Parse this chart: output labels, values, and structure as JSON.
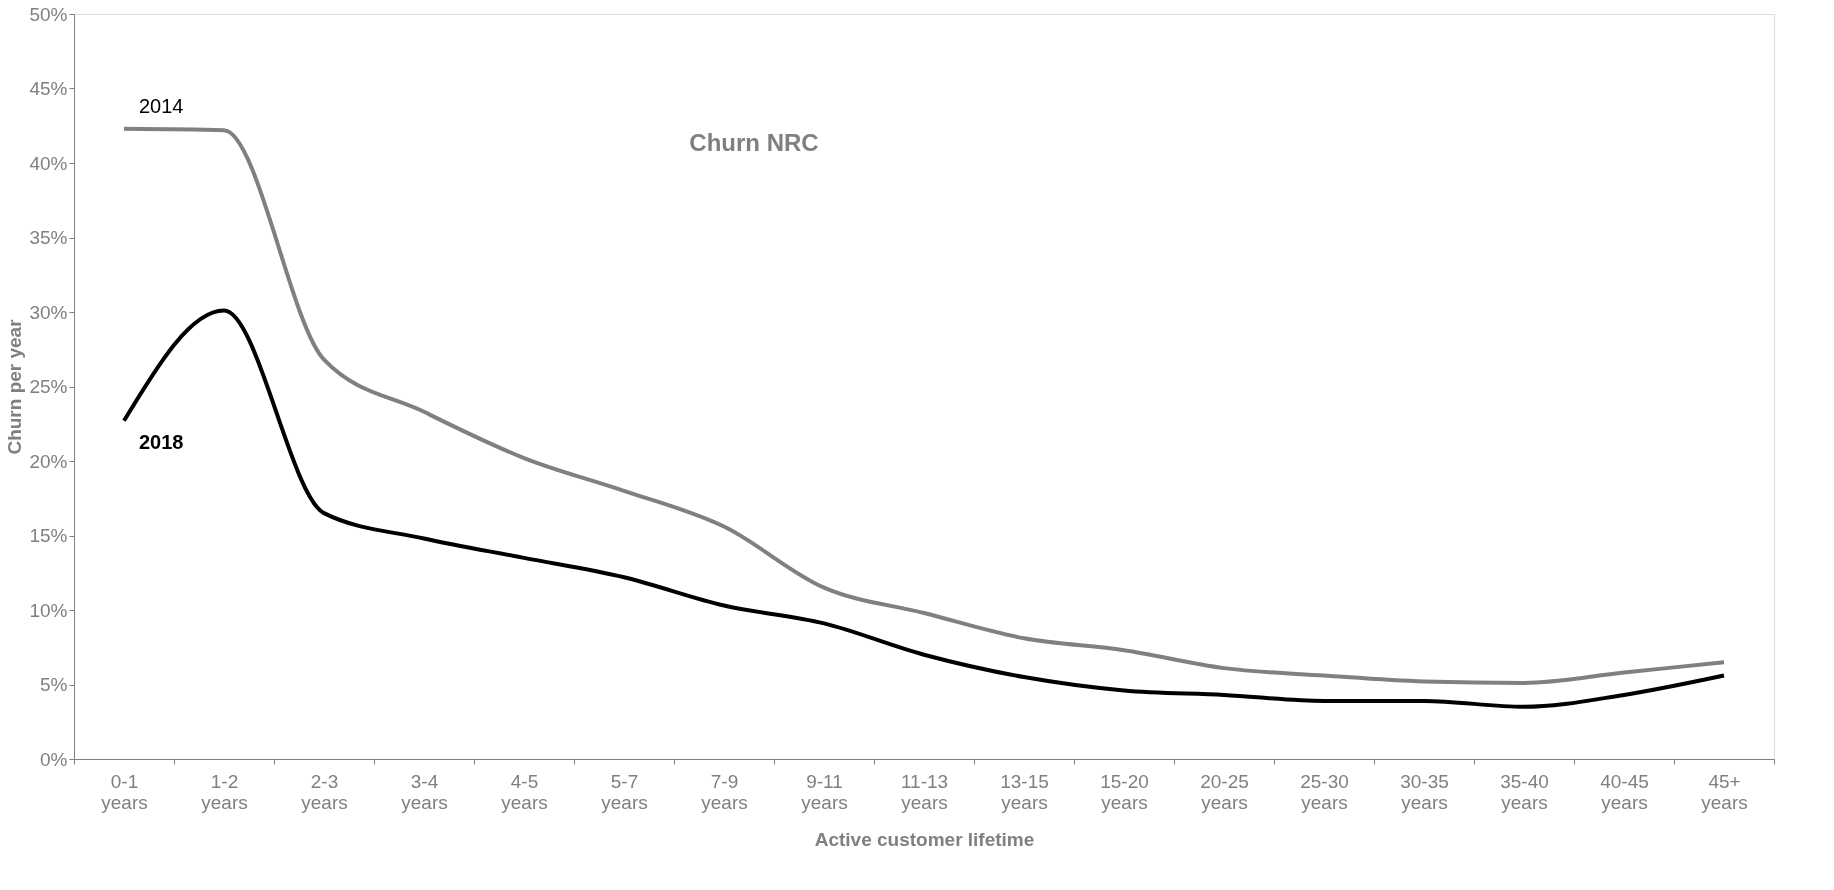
{
  "chart_data": {
    "type": "line",
    "title": "Churn NRC",
    "xlabel": "Active customer lifetime",
    "ylabel": "Churn per year",
    "categories": [
      "0-1 years",
      "1-2 years",
      "2-3 years",
      "3-4 years",
      "4-5 years",
      "5-7 years",
      "7-9 years",
      "9-11 years",
      "11-13 years",
      "13-15 years",
      "15-20 years",
      "20-25 years",
      "25-30 years",
      "30-35 years",
      "35-40 years",
      "40-45 years",
      "45+ years"
    ],
    "series": [
      {
        "name": "2014",
        "color": "#808080",
        "values": [
          42.3,
          42.2,
          26.8,
          23.3,
          20.2,
          18.0,
          15.6,
          11.5,
          9.8,
          8.1,
          7.3,
          6.1,
          5.6,
          5.2,
          5.1,
          5.8,
          6.5
        ]
      },
      {
        "name": "2018",
        "color": "#000000",
        "values": [
          22.7,
          30.1,
          16.5,
          14.8,
          13.5,
          12.2,
          10.3,
          9.1,
          7.0,
          5.5,
          4.6,
          4.3,
          3.9,
          3.9,
          3.5,
          4.3,
          5.6
        ]
      }
    ],
    "ylim": [
      0,
      50
    ],
    "yticks": [
      {
        "value": 0,
        "label": "0%"
      },
      {
        "value": 5,
        "label": "5%"
      },
      {
        "value": 10,
        "label": "10%"
      },
      {
        "value": 15,
        "label": "15%"
      },
      {
        "value": 20,
        "label": "20%"
      },
      {
        "value": 25,
        "label": "25%"
      },
      {
        "value": 30,
        "label": "30%"
      },
      {
        "value": 35,
        "label": "35%"
      },
      {
        "value": 40,
        "label": "40%"
      },
      {
        "value": 45,
        "label": "45%"
      },
      {
        "value": 50,
        "label": "50%"
      }
    ],
    "grid": false,
    "marker": "none",
    "line_style": "solid"
  }
}
